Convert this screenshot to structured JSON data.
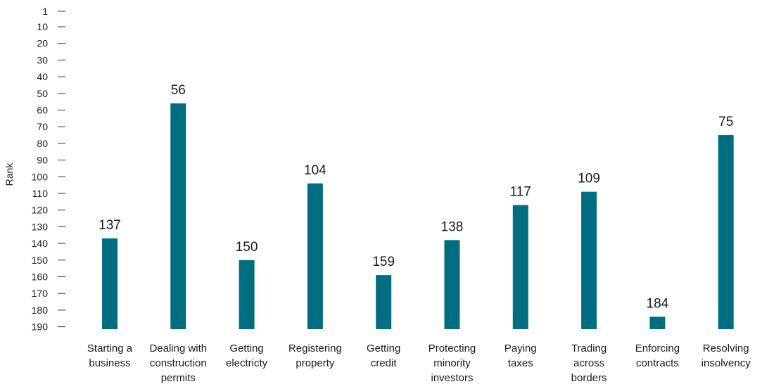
{
  "chart_data": {
    "type": "bar",
    "ylabel": "Rank",
    "yaxis_inverted": true,
    "ylim": [
      190,
      1
    ],
    "yticks": [
      1,
      10,
      20,
      30,
      40,
      50,
      60,
      70,
      80,
      90,
      100,
      110,
      120,
      130,
      140,
      150,
      160,
      170,
      180,
      190
    ],
    "categories": [
      [
        "Starting a",
        "business"
      ],
      [
        "Dealing with",
        "construction",
        "permits"
      ],
      [
        "Getting",
        "electricty"
      ],
      [
        "Registering",
        "property"
      ],
      [
        "Getting",
        "credit"
      ],
      [
        "Protecting",
        "minority",
        "investors"
      ],
      [
        "Paying",
        "taxes"
      ],
      [
        "Trading",
        "across",
        "borders"
      ],
      [
        "Enforcing",
        "contracts"
      ],
      [
        "Resolving",
        "insolvency"
      ]
    ],
    "values": [
      137,
      56,
      150,
      104,
      159,
      138,
      117,
      109,
      184,
      75
    ],
    "bar_color": "#006e80",
    "grid": false
  }
}
